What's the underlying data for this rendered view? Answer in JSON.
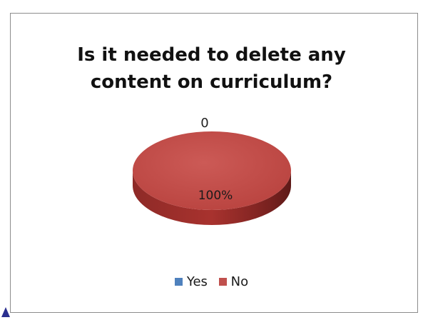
{
  "chart_data": {
    "type": "pie",
    "title": "Is it needed to delete any content on curriculum?",
    "title_lines": [
      "Is it needed to delete any",
      "content on curriculum?"
    ],
    "categories": [
      "Yes",
      "No"
    ],
    "values": [
      0,
      100
    ],
    "data_labels": [
      "0",
      "100%"
    ],
    "colors": [
      "#4f81bd",
      "#c0504d"
    ],
    "legend": {
      "position": "bottom",
      "entries": [
        "Yes",
        "No"
      ]
    },
    "style": "3d"
  }
}
